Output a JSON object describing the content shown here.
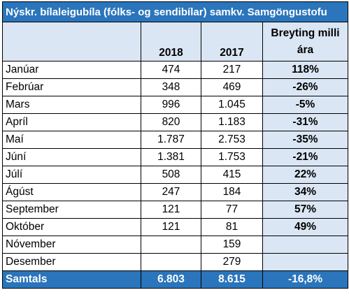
{
  "title": "Nýskr. bílaleigubíla (fólks- og sendibílar) samkv. Samgöngustofu",
  "headers": {
    "month": "",
    "y2018": "2018",
    "y2017": "2017",
    "change": "Breyting milli ára"
  },
  "rows": [
    {
      "month": "Janúar",
      "y2018": "474",
      "y2017": "217",
      "change": "118%"
    },
    {
      "month": "Febrúar",
      "y2018": "348",
      "y2017": "469",
      "change": "-26%"
    },
    {
      "month": "Mars",
      "y2018": "996",
      "y2017": "1.045",
      "change": "-5%"
    },
    {
      "month": "Apríl",
      "y2018": "820",
      "y2017": "1.183",
      "change": "-31%"
    },
    {
      "month": "Maí",
      "y2018": "1.787",
      "y2017": "2.753",
      "change": "-35%"
    },
    {
      "month": "Júní",
      "y2018": "1.381",
      "y2017": "1.753",
      "change": "-21%"
    },
    {
      "month": "Júlí",
      "y2018": "508",
      "y2017": "415",
      "change": "22%"
    },
    {
      "month": "Ágúst",
      "y2018": "247",
      "y2017": "184",
      "change": "34%"
    },
    {
      "month": "September",
      "y2018": "121",
      "y2017": "77",
      "change": "57%"
    },
    {
      "month": "Október",
      "y2018": "121",
      "y2017": "81",
      "change": "49%"
    },
    {
      "month": "Nóvember",
      "y2018": "",
      "y2017": "159",
      "change": ""
    },
    {
      "month": "Desember",
      "y2018": "",
      "y2017": "279",
      "change": ""
    }
  ],
  "total": {
    "label": "Samtals",
    "y2018": "6.803",
    "y2017": "8.615",
    "change": "-16,8%"
  },
  "colors": {
    "header_blue": "#2a75bb",
    "light_blue": "#dbe6f4"
  }
}
